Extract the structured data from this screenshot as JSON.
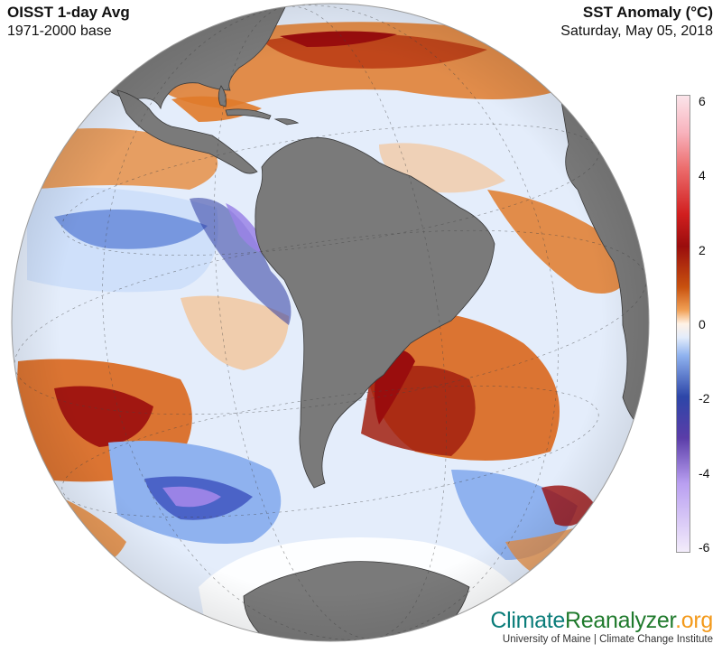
{
  "header": {
    "product_title": "OISST 1-day Avg",
    "baseline": "1971-2000 base",
    "variable_title": "SST Anomaly (°C)",
    "date": "Saturday, May 05, 2018"
  },
  "colorbar": {
    "ticks": [
      "6",
      "4",
      "2",
      "0",
      "-2",
      "-4",
      "-6"
    ],
    "colors": {
      "warm_max": "#fbe4ea",
      "warm_strong": "#9a0d0d",
      "warm": "#e07a2a",
      "neutral": "#ffffff",
      "cool": "#8fb2ef",
      "cool_strong": "#2d46a8",
      "cool_max": "#f3ecfb"
    }
  },
  "map": {
    "projection": "orthographic globe centered on South America",
    "land_color": "#7a7a7a",
    "ice_color": "#ffffff",
    "anomaly_colors": {
      "strong_warm": "#9a0d0d",
      "warm": "#d9661c",
      "light_warm": "#f3b57a",
      "neutral": "#ffffff",
      "light_cool": "#cfe0fa",
      "cool": "#5a7fd6",
      "strong_cool": "#2d3aa0",
      "extreme_cool": "#9a83e6"
    }
  },
  "branding": {
    "name_part1": "Climate",
    "name_part2": "Reanalyzer",
    "name_part3": ".org",
    "affiliation": "University of Maine | Climate Change Institute"
  }
}
